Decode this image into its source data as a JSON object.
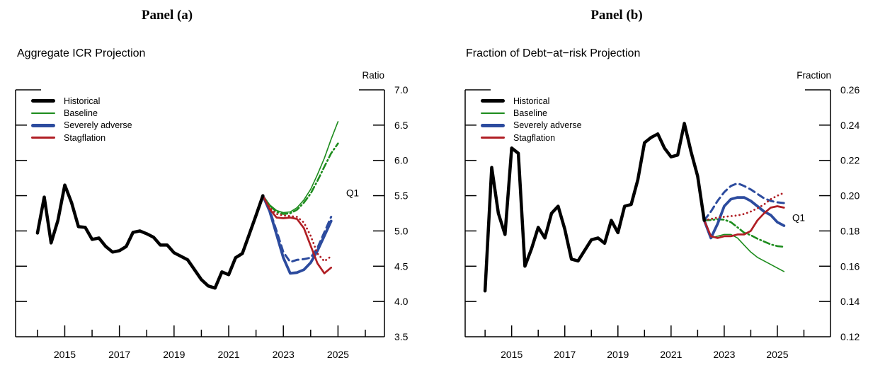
{
  "panels": [
    {
      "panel_label": "Panel (a)",
      "chart_title": "Aggregate ICR Projection",
      "unit_label": "Ratio",
      "annotation_label": "Q1",
      "legend": [
        {
          "label": "Historical",
          "color": "#000000",
          "sample_height": 5
        },
        {
          "label": "Baseline",
          "color": "#1d8c1d",
          "sample_height": 2
        },
        {
          "label": "Severely adverse",
          "color": "#2c4b9e",
          "sample_height": 4.5
        },
        {
          "label": "Stagflation",
          "color": "#b01e24",
          "sample_height": 3
        }
      ]
    },
    {
      "panel_label": "Panel (b)",
      "chart_title": "Fraction of Debt−at−risk Projection",
      "unit_label": "Fraction",
      "annotation_label": "Q1",
      "legend": [
        {
          "label": "Historical",
          "color": "#000000",
          "sample_height": 5
        },
        {
          "label": "Baseline",
          "color": "#1d8c1d",
          "sample_height": 2
        },
        {
          "label": "Severely adverse",
          "color": "#2c4b9e",
          "sample_height": 4.5
        },
        {
          "label": "Stagflation",
          "color": "#b01e24",
          "sample_height": 3
        }
      ]
    }
  ],
  "colors": {
    "historical": "#000000",
    "baseline": "#1d8c1d",
    "severely_adverse": "#2c4b9e",
    "stagflation": "#b01e24",
    "axis": "#000000"
  },
  "chart_data": [
    {
      "type": "line",
      "title": "Aggregate ICR Projection",
      "panel_label": "Panel (a)",
      "ylabel": "Ratio",
      "ylim": [
        3.5,
        7.0
      ],
      "yticks": [
        3.5,
        4.0,
        4.5,
        5.0,
        5.5,
        6.0,
        6.5,
        7.0
      ],
      "ytick_decimals": 1,
      "xlim": [
        2013.2,
        2026.7
      ],
      "xticks_major": [
        2015,
        2017,
        2019,
        2021,
        2023,
        2025
      ],
      "xticks_minor": [
        2014,
        2016,
        2018,
        2020,
        2022,
        2024,
        2026
      ],
      "x_step": 0.25,
      "grid": false,
      "legend_position": "top-left",
      "annotation": {
        "label": "Q1",
        "value": 5.5
      },
      "series": [
        {
          "name": "Baseline (dash-dot)",
          "color": "#1d8c1d",
          "width": 2.6,
          "dash": "9 4 1.5 4",
          "start": 2022.25,
          "values": [
            5.5,
            5.36,
            5.27,
            5.24,
            5.25,
            5.3,
            5.4,
            5.53,
            5.71,
            5.91,
            6.1,
            6.24
          ]
        },
        {
          "name": "Baseline",
          "color": "#1d8c1d",
          "width": 1.6,
          "dash": null,
          "start": 2022.25,
          "values": [
            5.5,
            5.37,
            5.29,
            5.26,
            5.27,
            5.33,
            5.44,
            5.59,
            5.8,
            6.03,
            6.3,
            6.55
          ]
        },
        {
          "name": "Severely adverse (dashed)",
          "color": "#2c4b9e",
          "width": 3.0,
          "dash": "9 6",
          "start": 2022.25,
          "values": [
            5.5,
            5.3,
            5.0,
            4.7,
            4.56,
            4.59,
            4.6,
            4.62,
            4.76,
            4.98,
            5.2
          ]
        },
        {
          "name": "Severely adverse",
          "color": "#2c4b9e",
          "width": 3.8,
          "dash": null,
          "start": 2022.25,
          "values": [
            5.5,
            5.28,
            4.95,
            4.62,
            4.4,
            4.41,
            4.45,
            4.55,
            4.72,
            4.93,
            5.14
          ]
        },
        {
          "name": "Stagflation (dotted)",
          "color": "#b01e24",
          "width": 2.8,
          "dash": "0.1 5.5",
          "start": 2022.25,
          "values": [
            5.5,
            5.33,
            5.24,
            5.22,
            5.21,
            5.2,
            5.12,
            4.93,
            4.68,
            4.57,
            4.64
          ]
        },
        {
          "name": "Stagflation",
          "color": "#b01e24",
          "width": 2.7,
          "dash": null,
          "start": 2022.25,
          "values": [
            5.5,
            5.31,
            5.19,
            5.18,
            5.19,
            5.17,
            5.04,
            4.79,
            4.54,
            4.4,
            4.48
          ]
        },
        {
          "name": "Historical",
          "color": "#000000",
          "width": 4.5,
          "dash": null,
          "start": 2014.0,
          "values": [
            4.97,
            5.48,
            4.83,
            5.15,
            5.65,
            5.4,
            5.06,
            5.05,
            4.88,
            4.9,
            4.78,
            4.7,
            4.72,
            4.78,
            4.98,
            5.0,
            4.96,
            4.91,
            4.8,
            4.8,
            4.69,
            4.64,
            4.59,
            4.45,
            4.31,
            4.22,
            4.19,
            4.42,
            4.38,
            4.62,
            4.68,
            4.95,
            5.22,
            5.5
          ]
        }
      ]
    },
    {
      "type": "line",
      "title": "Fraction of Debt−at−risk Projection",
      "panel_label": "Panel (b)",
      "ylabel": "Fraction",
      "ylim": [
        0.12,
        0.26
      ],
      "yticks": [
        0.12,
        0.14,
        0.16,
        0.18,
        0.2,
        0.22,
        0.24,
        0.26
      ],
      "ytick_decimals": 2,
      "xlim": [
        2013.25,
        2027.0
      ],
      "xticks_major": [
        2015,
        2017,
        2019,
        2021,
        2023,
        2025
      ],
      "xticks_minor": [
        2014,
        2016,
        2018,
        2020,
        2022,
        2024,
        2026
      ],
      "x_step": 0.25,
      "grid": false,
      "legend_position": "top-left",
      "annotation": {
        "label": "Q1",
        "value": 0.186
      },
      "series": [
        {
          "name": "Baseline (dash-dot)",
          "color": "#1d8c1d",
          "width": 2.6,
          "dash": "9 4 1.5 4",
          "start": 2022.25,
          "values": [
            0.186,
            0.1862,
            0.1866,
            0.1864,
            0.185,
            0.182,
            0.179,
            0.1776,
            0.1756,
            0.174,
            0.1724,
            0.1714,
            0.171
          ]
        },
        {
          "name": "Baseline",
          "color": "#1d8c1d",
          "width": 1.6,
          "dash": null,
          "start": 2022.25,
          "values": [
            0.186,
            0.176,
            0.177,
            0.178,
            0.178,
            0.176,
            0.172,
            0.168,
            0.165,
            0.163,
            0.161,
            0.159,
            0.157
          ]
        },
        {
          "name": "Severely adverse (dashed)",
          "color": "#2c4b9e",
          "width": 3.0,
          "dash": "9 6",
          "start": 2022.25,
          "values": [
            0.186,
            0.191,
            0.197,
            0.202,
            0.2055,
            0.207,
            0.2055,
            0.2035,
            0.201,
            0.1985,
            0.197,
            0.1962,
            0.1958
          ]
        },
        {
          "name": "Severely adverse",
          "color": "#2c4b9e",
          "width": 3.8,
          "dash": null,
          "start": 2022.25,
          "values": [
            0.186,
            0.176,
            0.184,
            0.194,
            0.198,
            0.199,
            0.199,
            0.197,
            0.194,
            0.191,
            0.189,
            0.185,
            0.183
          ]
        },
        {
          "name": "Stagflation (dotted)",
          "color": "#b01e24",
          "width": 2.8,
          "dash": "0.1 5.5",
          "start": 2022.25,
          "values": [
            0.186,
            0.1868,
            0.1876,
            0.188,
            0.1884,
            0.1888,
            0.1896,
            0.191,
            0.1928,
            0.195,
            0.198,
            0.2,
            0.2016
          ]
        },
        {
          "name": "Stagflation",
          "color": "#b01e24",
          "width": 2.7,
          "dash": null,
          "start": 2022.25,
          "values": [
            0.186,
            0.177,
            0.176,
            0.177,
            0.177,
            0.178,
            0.178,
            0.18,
            0.186,
            0.19,
            0.1932,
            0.194,
            0.1932
          ]
        },
        {
          "name": "Historical",
          "color": "#000000",
          "width": 4.5,
          "dash": null,
          "start": 2014.0,
          "values": [
            0.146,
            0.216,
            0.19,
            0.178,
            0.227,
            0.224,
            0.16,
            0.17,
            0.182,
            0.176,
            0.19,
            0.194,
            0.181,
            0.164,
            0.163,
            0.169,
            0.175,
            0.176,
            0.173,
            0.186,
            0.179,
            0.194,
            0.195,
            0.209,
            0.23,
            0.233,
            0.235,
            0.227,
            0.222,
            0.223,
            0.241,
            0.225,
            0.211,
            0.186
          ]
        }
      ]
    }
  ]
}
